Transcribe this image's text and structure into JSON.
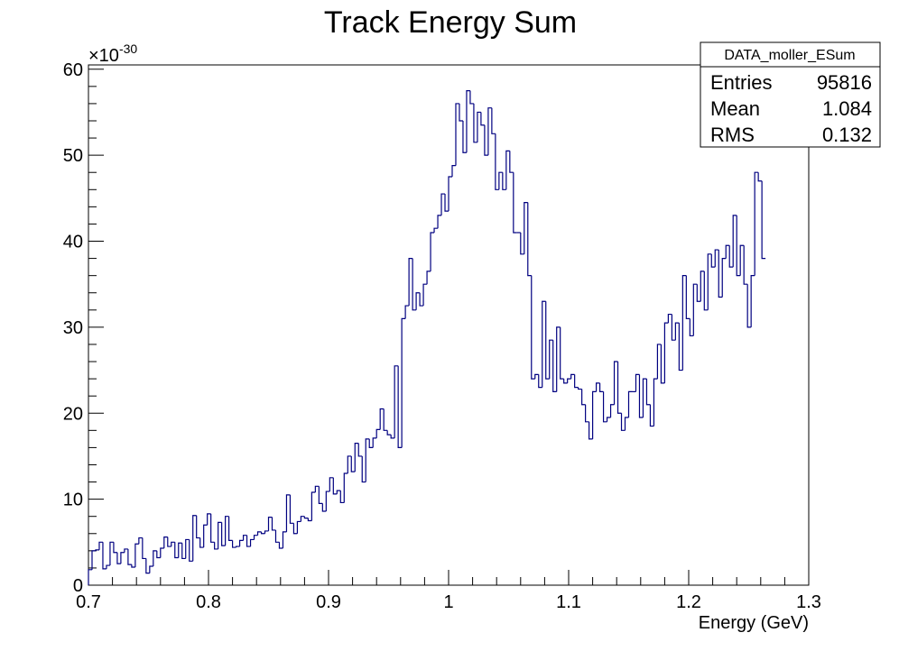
{
  "chart_data": {
    "type": "histogram",
    "title": "Track Energy Sum",
    "xlabel": "Energy (GeV)",
    "ylabel": "",
    "y_multiplier": "×10",
    "y_multiplier_exponent": "-30",
    "xlim": [
      0.7,
      1.3
    ],
    "ylim": [
      0,
      60.5
    ],
    "x_ticks": [
      "0.7",
      "0.8",
      "0.9",
      "1",
      "1.1",
      "1.2",
      "1.3"
    ],
    "x_tick_values": [
      0.7,
      0.8,
      0.9,
      1.0,
      1.1,
      1.2,
      1.3
    ],
    "y_ticks": [
      "0",
      "10",
      "20",
      "30",
      "40",
      "50",
      "60"
    ],
    "y_tick_values": [
      0,
      10,
      20,
      30,
      40,
      50,
      60
    ],
    "line_color": "#000080",
    "grid": false,
    "legend": {
      "position": "top-right",
      "name": "DATA_moller_ESum",
      "rows": [
        {
          "label": "Entries",
          "value": "95816"
        },
        {
          "label": "Mean",
          "value": "1.084"
        },
        {
          "label": "RMS",
          "value": "0.132"
        }
      ]
    },
    "bin_width": 0.003,
    "bin_start": 0.7,
    "values": [
      1.8,
      4.0,
      4.1,
      5.0,
      1.9,
      2.3,
      5.0,
      3.8,
      2.5,
      3.8,
      4.2,
      2.4,
      2.1,
      4.8,
      5.5,
      3.1,
      1.4,
      2.2,
      4.0,
      3.2,
      4.3,
      5.6,
      4.5,
      5.0,
      3.2,
      4.9,
      3.1,
      5.3,
      2.8,
      8.1,
      5.5,
      4.4,
      7.0,
      8.3,
      5.0,
      4.2,
      7.3,
      4.6,
      8.0,
      5.2,
      4.4,
      4.5,
      5.2,
      5.8,
      4.5,
      5.3,
      5.8,
      6.2,
      6.0,
      6.3,
      7.9,
      6.4,
      5.0,
      4.3,
      6.2,
      10.5,
      7.2,
      6.0,
      7.4,
      8.0,
      7.8,
      7.5,
      10.8,
      11.5,
      9.5,
      8.6,
      10.9,
      12.5,
      10.6,
      11.0,
      9.6,
      13.0,
      15.0,
      13.2,
      16.5,
      15.0,
      12.0,
      17.0,
      16.0,
      17.1,
      18.1,
      20.5,
      18.0,
      17.5,
      17.1,
      25.5,
      16.0,
      31.0,
      32.5,
      38.0,
      32.0,
      34.0,
      32.5,
      35.0,
      36.5,
      41.0,
      41.5,
      43.0,
      45.5,
      43.5,
      47.5,
      48.8,
      56.0,
      54.0,
      50.3,
      57.5,
      56.0,
      51.5,
      55.0,
      53.5,
      50.0,
      55.5,
      52.5,
      46.0,
      48.0,
      46.0,
      50.5,
      48.0,
      41.0,
      41.0,
      38.5,
      44.5,
      36.0,
      24.0,
      24.5,
      23.0,
      33.0,
      24.0,
      28.5,
      22.5,
      30.0,
      24.0,
      23.5,
      24.0,
      24.5,
      23.0,
      22.8,
      21.0,
      19.0,
      17.0,
      22.5,
      23.5,
      22.5,
      19.0,
      19.5,
      21.0,
      26.0,
      20.0,
      18.0,
      19.5,
      22.5,
      22.5,
      24.5,
      19.5,
      24.0,
      21.0,
      18.5,
      24.0,
      28.0,
      23.5,
      30.5,
      31.5,
      28.5,
      30.5,
      25.0,
      36.0,
      31.0,
      29.0,
      35.0,
      33.0,
      36.5,
      32.0,
      38.5,
      37.0,
      39.0,
      33.5,
      38.0,
      39.5,
      37.0,
      43.0,
      36.0,
      39.5,
      35.0,
      30.0,
      36.0,
      48.0,
      47.0,
      38.0
    ]
  }
}
